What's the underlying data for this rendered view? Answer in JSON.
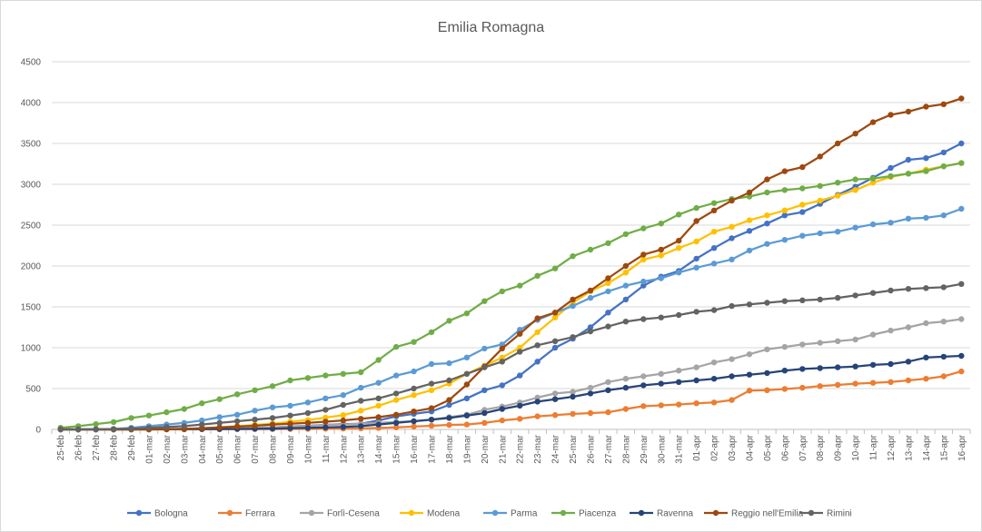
{
  "chart_data": {
    "type": "line",
    "title": "Emilia Romagna",
    "xlabel": "",
    "ylabel": "",
    "ylim": [
      0,
      4500
    ],
    "yticks": [
      0,
      500,
      1000,
      1500,
      2000,
      2500,
      3000,
      3500,
      4000,
      4500
    ],
    "grid": "horizontal",
    "legend": "bottom",
    "categories": [
      "25-feb",
      "26-feb",
      "27-feb",
      "28-feb",
      "29-feb",
      "01-mar",
      "02-mar",
      "03-mar",
      "04-mar",
      "05-mar",
      "06-mar",
      "07-mar",
      "08-mar",
      "09-mar",
      "10-mar",
      "11-mar",
      "12-mar",
      "13-mar",
      "14-mar",
      "15-mar",
      "16-mar",
      "17-mar",
      "18-mar",
      "19-mar",
      "20-mar",
      "21-mar",
      "22-mar",
      "23-mar",
      "24-mar",
      "25-mar",
      "26-mar",
      "27-mar",
      "28-mar",
      "29-mar",
      "30-mar",
      "31-mar",
      "01-apr",
      "02-apr",
      "03-apr",
      "04-apr",
      "05-apr",
      "06-apr",
      "07-apr",
      "08-apr",
      "09-apr",
      "10-apr",
      "11-apr",
      "12-apr",
      "13-apr",
      "14-apr",
      "15-apr",
      "16-apr"
    ],
    "series": [
      {
        "name": "Bologna",
        "color": "#4472c4",
        "values": [
          0,
          0,
          0,
          0,
          3,
          5,
          5,
          8,
          10,
          12,
          15,
          20,
          25,
          35,
          45,
          55,
          65,
          70,
          110,
          160,
          190,
          220,
          300,
          380,
          480,
          540,
          660,
          830,
          1000,
          1110,
          1250,
          1430,
          1590,
          1760,
          1870,
          1940,
          2090,
          2220,
          2340,
          2430,
          2520,
          2620,
          2660,
          2760,
          2870,
          2970,
          3080,
          3200,
          3300,
          3320,
          3390,
          3500
        ]
      },
      {
        "name": "Ferrara",
        "color": "#ed7d31",
        "values": [
          0,
          0,
          0,
          0,
          0,
          0,
          0,
          1,
          2,
          2,
          3,
          3,
          4,
          5,
          6,
          8,
          10,
          12,
          18,
          25,
          35,
          45,
          55,
          60,
          80,
          110,
          130,
          160,
          175,
          190,
          200,
          210,
          250,
          285,
          295,
          305,
          320,
          330,
          360,
          475,
          480,
          495,
          510,
          530,
          545,
          560,
          570,
          580,
          600,
          620,
          650,
          710
        ]
      },
      {
        "name": "Forlì-Cesena",
        "color": "#a5a5a5",
        "values": [
          0,
          0,
          0,
          0,
          0,
          0,
          1,
          2,
          5,
          8,
          15,
          20,
          25,
          30,
          40,
          55,
          60,
          70,
          80,
          90,
          100,
          120,
          150,
          180,
          240,
          280,
          330,
          390,
          440,
          460,
          510,
          580,
          620,
          650,
          680,
          720,
          760,
          820,
          860,
          920,
          980,
          1010,
          1040,
          1060,
          1080,
          1100,
          1160,
          1210,
          1250,
          1300,
          1320,
          1350
        ]
      },
      {
        "name": "Modena",
        "color": "#ffc000",
        "values": [
          0,
          0,
          0,
          0,
          0,
          0,
          1,
          3,
          10,
          25,
          40,
          55,
          70,
          95,
          115,
          145,
          175,
          230,
          290,
          360,
          420,
          480,
          560,
          680,
          780,
          880,
          1000,
          1190,
          1370,
          1550,
          1690,
          1790,
          1920,
          2080,
          2130,
          2220,
          2300,
          2420,
          2480,
          2560,
          2620,
          2680,
          2750,
          2800,
          2860,
          2930,
          3020,
          3090,
          3130,
          3180,
          3220,
          3260
        ]
      },
      {
        "name": "Parma",
        "color": "#5b9bd5",
        "values": [
          0,
          0,
          0,
          5,
          20,
          40,
          60,
          80,
          110,
          150,
          180,
          230,
          270,
          290,
          330,
          380,
          420,
          510,
          570,
          660,
          710,
          800,
          810,
          880,
          990,
          1040,
          1220,
          1340,
          1430,
          1510,
          1610,
          1690,
          1760,
          1810,
          1850,
          1920,
          1980,
          2030,
          2080,
          2190,
          2270,
          2320,
          2370,
          2400,
          2420,
          2470,
          2510,
          2530,
          2580,
          2590,
          2620,
          2700
        ]
      },
      {
        "name": "Piacenza",
        "color": "#70ad47",
        "values": [
          20,
          40,
          65,
          90,
          140,
          170,
          210,
          250,
          320,
          370,
          430,
          480,
          530,
          600,
          630,
          660,
          680,
          700,
          850,
          1010,
          1070,
          1190,
          1330,
          1420,
          1570,
          1690,
          1760,
          1880,
          1970,
          2120,
          2200,
          2280,
          2390,
          2460,
          2520,
          2630,
          2710,
          2770,
          2820,
          2850,
          2900,
          2930,
          2950,
          2980,
          3020,
          3060,
          3070,
          3100,
          3130,
          3160,
          3220,
          3260
        ]
      },
      {
        "name": "Ravenna",
        "color": "#264478",
        "values": [
          0,
          0,
          0,
          0,
          0,
          1,
          2,
          3,
          4,
          5,
          6,
          8,
          10,
          15,
          20,
          25,
          30,
          40,
          60,
          80,
          100,
          120,
          140,
          170,
          200,
          250,
          290,
          340,
          370,
          400,
          440,
          480,
          510,
          540,
          560,
          580,
          600,
          620,
          650,
          670,
          690,
          720,
          740,
          750,
          760,
          770,
          790,
          800,
          830,
          880,
          890,
          900
        ]
      },
      {
        "name": "Reggio nell'Emilia",
        "color": "#9e480e",
        "values": [
          0,
          0,
          0,
          0,
          0,
          0,
          2,
          5,
          15,
          25,
          35,
          45,
          60,
          70,
          80,
          95,
          110,
          130,
          150,
          180,
          220,
          260,
          360,
          550,
          770,
          990,
          1170,
          1360,
          1430,
          1590,
          1700,
          1850,
          2000,
          2140,
          2200,
          2310,
          2550,
          2680,
          2800,
          2900,
          3060,
          3160,
          3210,
          3340,
          3500,
          3620,
          3760,
          3850,
          3890,
          3950,
          3980,
          4050
        ]
      },
      {
        "name": "Rimini",
        "color": "#636363",
        "values": [
          0,
          0,
          0,
          5,
          10,
          20,
          30,
          40,
          60,
          80,
          100,
          120,
          140,
          170,
          200,
          240,
          300,
          350,
          380,
          440,
          500,
          560,
          600,
          680,
          760,
          830,
          950,
          1030,
          1080,
          1130,
          1200,
          1260,
          1320,
          1350,
          1370,
          1400,
          1440,
          1460,
          1510,
          1530,
          1550,
          1570,
          1580,
          1590,
          1610,
          1640,
          1670,
          1700,
          1720,
          1730,
          1740,
          1780
        ]
      }
    ]
  }
}
